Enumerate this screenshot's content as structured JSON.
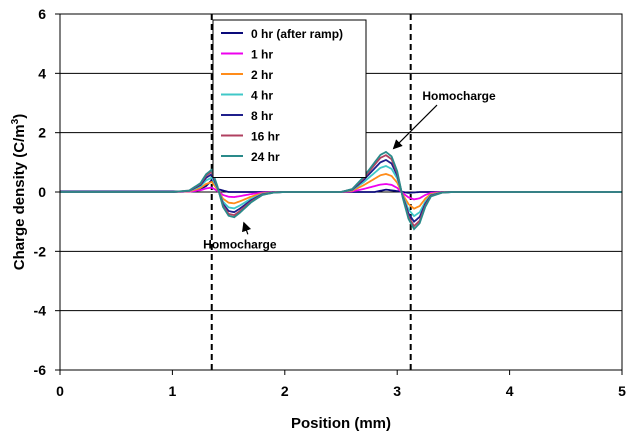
{
  "chart_data": {
    "type": "line",
    "xlabel": "Position (mm)",
    "ylabel": "Charge density (C/m³)",
    "ylabel_parts": {
      "main": "Charge density (C/m",
      "sup": "3",
      "end": ")"
    },
    "xlim": [
      0,
      5
    ],
    "ylim": [
      -6,
      6
    ],
    "x_ticks": [
      "0",
      "1",
      "2",
      "3",
      "4",
      "5"
    ],
    "y_ticks": [
      "6",
      "4",
      "2",
      "0",
      "-2",
      "-4",
      "-6"
    ],
    "grid": "horizontal major gridlines",
    "legend_position": "top-center",
    "vertical_markers_x": [
      1.35,
      3.12
    ],
    "series": [
      {
        "name": "0 hr (after ramp)",
        "color": "#0a0a7a",
        "scale": 0.0
      },
      {
        "name": "1 hr",
        "color": "#ee00ee",
        "scale": 0.2
      },
      {
        "name": "2 hr",
        "color": "#ff8c1a",
        "scale": 0.45
      },
      {
        "name": "4 hr",
        "color": "#40c8c8",
        "scale": 0.65
      },
      {
        "name": "8 hr",
        "color": "#1f1f8c",
        "scale": 0.8
      },
      {
        "name": "16 hr",
        "color": "#b04060",
        "scale": 0.92
      },
      {
        "name": "24 hr",
        "color": "#2a8a8a",
        "scale": 1.0
      }
    ],
    "feature_profile_24hr": {
      "x": [
        0,
        1.0,
        1.15,
        1.25,
        1.3,
        1.35,
        1.4,
        1.45,
        1.5,
        1.55,
        1.6,
        1.7,
        1.8,
        1.9,
        2.0,
        2.5,
        2.6,
        2.7,
        2.8,
        2.85,
        2.9,
        2.95,
        3.0,
        3.05,
        3.1,
        3.15,
        3.2,
        3.25,
        3.3,
        3.4,
        3.5,
        5.0
      ],
      "y": [
        0,
        0,
        0.05,
        0.3,
        0.6,
        0.75,
        0.2,
        -0.5,
        -0.8,
        -0.85,
        -0.7,
        -0.35,
        -0.1,
        -0.02,
        0,
        0,
        0.1,
        0.5,
        1.0,
        1.25,
        1.35,
        1.2,
        0.7,
        -0.2,
        -0.9,
        -1.25,
        -1.05,
        -0.5,
        -0.15,
        -0.02,
        0,
        0
      ]
    },
    "baseline_0hr": {
      "x": [
        0,
        1.2,
        1.3,
        1.35,
        1.4,
        1.5,
        2.8,
        2.9,
        3.0,
        3.1,
        3.2,
        3.3,
        5.0
      ],
      "y": [
        0.02,
        0.02,
        0.2,
        0.4,
        0.1,
        0.0,
        0.0,
        0.08,
        0.03,
        -0.03,
        0.0,
        0.0,
        0.0
      ]
    },
    "annotations": [
      {
        "text": "Homocharge",
        "text_x": 1.6,
        "text_y": -1.9,
        "point_x": 1.6,
        "point_y": -0.9
      },
      {
        "text": "Homocharge",
        "text_x": 3.55,
        "text_y": 3.1,
        "point_x": 2.95,
        "point_y": 1.4
      }
    ]
  }
}
